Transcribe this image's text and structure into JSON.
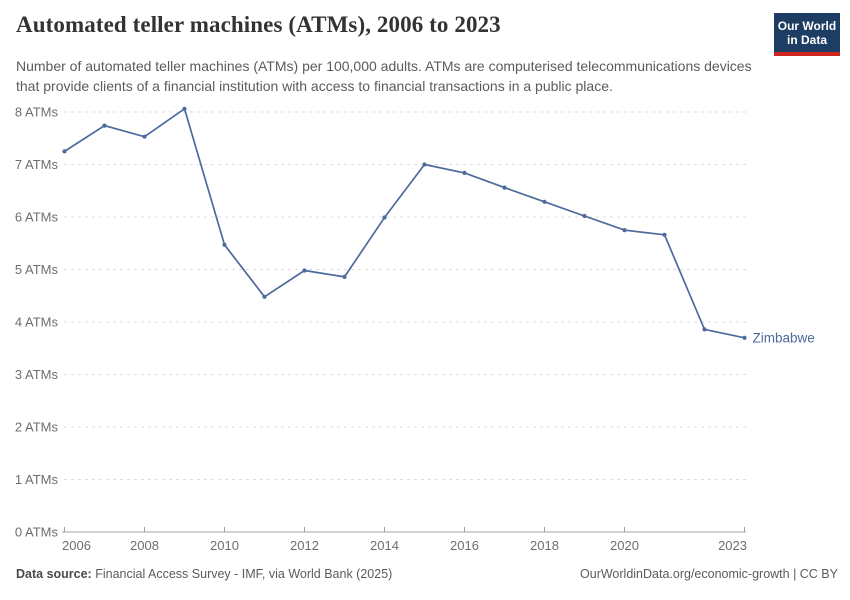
{
  "header": {
    "title": "Automated teller machines (ATMs), 2006 to 2023",
    "subtitle": "Number of automated teller machines (ATMs) per 100,000 adults. ATMs are computerised telecommunications devices that provide clients of a financial institution with access to financial transactions in a public place.",
    "logo": {
      "line1": "Our World",
      "line2": "in Data"
    }
  },
  "chart_data": {
    "type": "line",
    "title": "Automated teller machines (ATMs), 2006 to 2023",
    "x": [
      2006,
      2007,
      2008,
      2009,
      2010,
      2011,
      2012,
      2013,
      2014,
      2015,
      2016,
      2017,
      2018,
      2019,
      2020,
      2021,
      2022,
      2023
    ],
    "series": [
      {
        "name": "Zimbabwe",
        "color": "#4C6A9C",
        "values": [
          7.25,
          7.74,
          7.53,
          8.06,
          5.47,
          4.48,
          4.98,
          4.86,
          5.99,
          7.0,
          6.84,
          6.56,
          6.29,
          6.02,
          5.75,
          5.66,
          3.86,
          3.7
        ]
      }
    ],
    "xlabel": "",
    "ylabel": "",
    "ylim": [
      0,
      8
    ],
    "ytick_labels": [
      "0 ATMs",
      "1 ATMs",
      "2 ATMs",
      "3 ATMs",
      "4 ATMs",
      "5 ATMs",
      "6 ATMs",
      "7 ATMs",
      "8 ATMs"
    ],
    "xticks": [
      2006,
      2008,
      2010,
      2012,
      2014,
      2016,
      2018,
      2020,
      2023
    ],
    "grid": "horizontal-dashed",
    "legend_position": "end-of-line-label"
  },
  "footer": {
    "source_label": "Data source:",
    "source_text": " Financial Access Survey - IMF, via World Bank (2025)",
    "credit": "OurWorldinData.org/economic-growth | CC BY"
  },
  "colors": {
    "accent": "#4C6A9C",
    "grid": "#dcdcdc",
    "axis": "#a3a3a3",
    "tick_text": "#6e6e6e",
    "logo_bg": "#1d3d63",
    "logo_red": "#cf2420"
  }
}
